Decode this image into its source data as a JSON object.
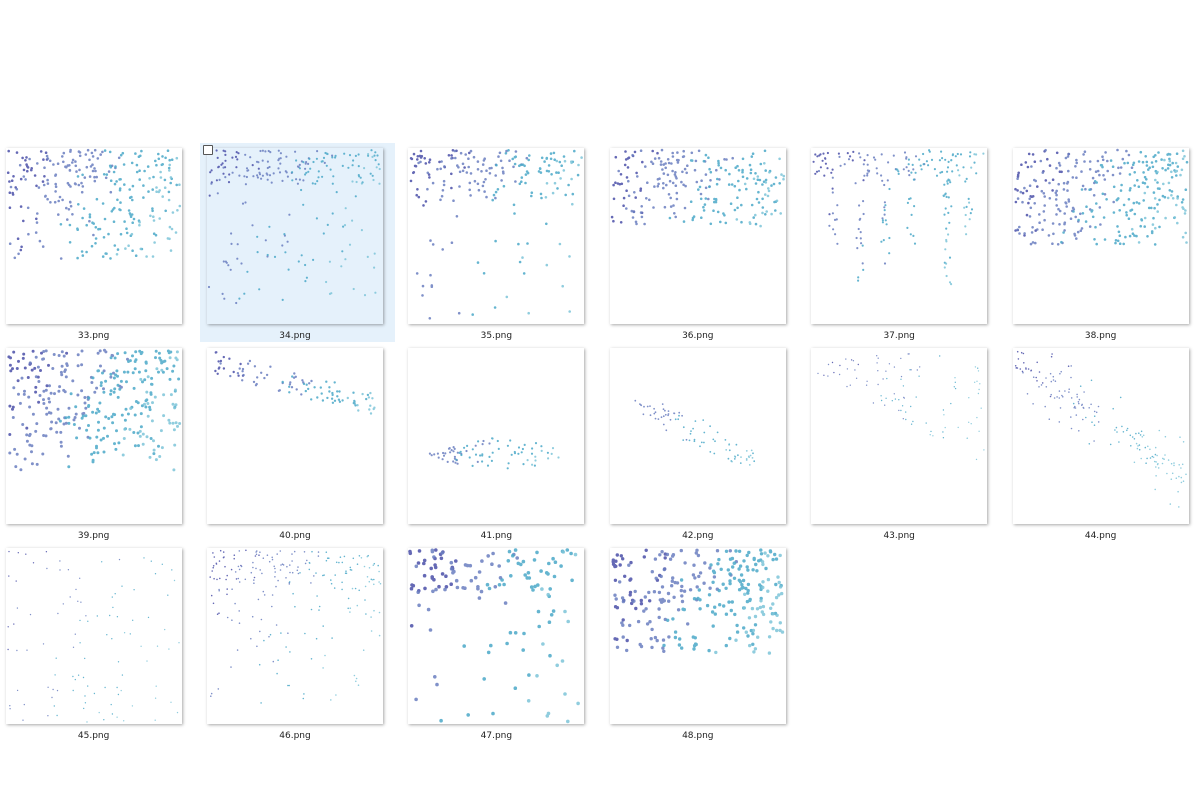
{
  "files": [
    {
      "name": "33.png"
    },
    {
      "name": "34.png"
    },
    {
      "name": "35.png"
    },
    {
      "name": "36.png"
    },
    {
      "name": "37.png"
    },
    {
      "name": "38.png"
    },
    {
      "name": "39.png"
    },
    {
      "name": "40.png"
    },
    {
      "name": "41.png"
    },
    {
      "name": "42.png"
    },
    {
      "name": "43.png"
    },
    {
      "name": "44.png"
    },
    {
      "name": "45.png"
    },
    {
      "name": "46.png"
    },
    {
      "name": "47.png"
    },
    {
      "name": "48.png"
    }
  ]
}
